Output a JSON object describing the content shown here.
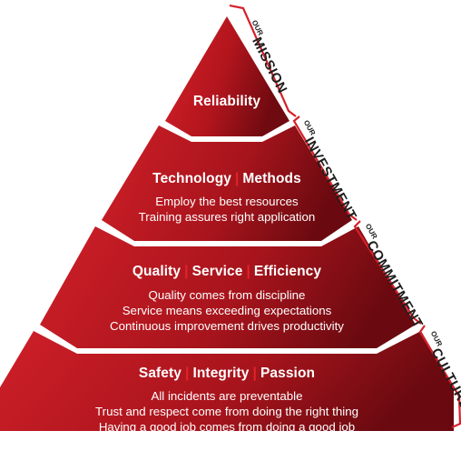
{
  "pyramid": {
    "tiers": [
      {
        "title_parts": [
          "Reliability"
        ],
        "lines": []
      },
      {
        "title_parts": [
          "Technology",
          "Methods"
        ],
        "lines": [
          "Employ the best resources",
          "Training assures right application"
        ]
      },
      {
        "title_parts": [
          "Quality",
          "Service",
          "Efficiency"
        ],
        "lines": [
          "Quality comes from discipline",
          "Service means exceeding expectations",
          "Continuous improvement drives productivity"
        ]
      },
      {
        "title_parts": [
          "Safety",
          "Integrity",
          "Passion"
        ],
        "lines": [
          "All incidents are preventable",
          "Trust and respect come from doing the right thing",
          "Having a good job comes from doing a good job"
        ]
      }
    ],
    "side_labels": [
      {
        "prefix": "OUR",
        "word": "MISSION"
      },
      {
        "prefix": "OUR",
        "word": "INVESTMENT"
      },
      {
        "prefix": "OUR",
        "word": "COMMITMENT"
      },
      {
        "prefix": "OUR",
        "word": "CULTURE"
      }
    ],
    "colors": {
      "dark": "#7a0b12",
      "mid": "#b3151d",
      "light": "#d6212a",
      "accent": "#e4242b",
      "text": "#ffffff"
    },
    "separator": "|"
  }
}
